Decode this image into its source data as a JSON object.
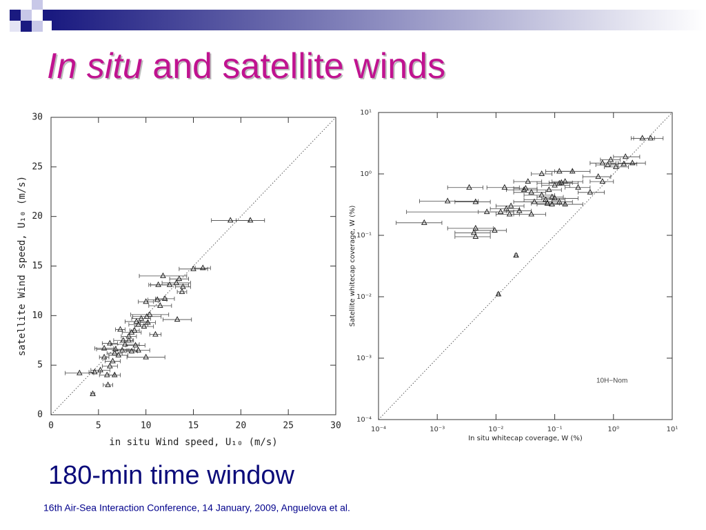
{
  "slide": {
    "title_italic": "In situ",
    "title_rest": "and satellite winds",
    "caption": "180-min time window",
    "footer": "16th Air-Sea Interaction Conference, 14 January, 2009, Anguelova et al."
  },
  "chart_data": [
    {
      "type": "scatter",
      "x_label": "in situ Wind speed, U₁₀ (m/s)",
      "y_label": "satellite Wind speed, U₁₀ (m/s)",
      "xlim": [
        0,
        30
      ],
      "ylim": [
        0,
        30
      ],
      "xticks": [
        0,
        5,
        10,
        15,
        20,
        25,
        30
      ],
      "yticks": [
        0,
        5,
        10,
        15,
        20,
        25,
        30
      ],
      "color": "#222222",
      "x": [
        18.9,
        21,
        15,
        16,
        11.8,
        13.5,
        13.2,
        12.5,
        11.3,
        13.9,
        13.8,
        12,
        11.2,
        10,
        11.5,
        10.4,
        10.1,
        9.5,
        13.3,
        9,
        9.2,
        10.2,
        9.8,
        7.3,
        8.5,
        8.8,
        11,
        8.2,
        7.6,
        8.2,
        7.8,
        8.9,
        6.2,
        5.6,
        6.8,
        7.5,
        8.5,
        6.7,
        9.2,
        7.1,
        5.6,
        10,
        6.5,
        6.2,
        5.2,
        4.6,
        3,
        5.9,
        6.7,
        6,
        4.4
      ],
      "y": [
        19.6,
        19.6,
        14.7,
        14.8,
        14,
        13.7,
        13.3,
        13.1,
        13.1,
        12.9,
        12.4,
        11.7,
        11.6,
        11.4,
        11,
        10.1,
        9.9,
        9.7,
        9.6,
        9.4,
        9.1,
        9.3,
        8.9,
        8.6,
        8.3,
        8.5,
        8.1,
        7.9,
        7.5,
        7.5,
        7.1,
        7,
        7.2,
        6.7,
        6.6,
        6.5,
        6.4,
        6.2,
        6.5,
        6,
        5.8,
        5.8,
        5.4,
        4.9,
        4.5,
        4.3,
        4.2,
        4,
        4,
        3,
        2.1
      ],
      "xerr": [
        2,
        1.5,
        1.5,
        0.8,
        2.5,
        1,
        1.5,
        2,
        1,
        0.8,
        0.5,
        1,
        1,
        0.8,
        1.2,
        2,
        1.5,
        1,
        1.5,
        1.2,
        1,
        0.8,
        1,
        0.5,
        1,
        0.5,
        0.6,
        0.8,
        1,
        0.5,
        1.5,
        1,
        0.8,
        1,
        2,
        0.7,
        0.6,
        0.8,
        1.2,
        1,
        0.5,
        2,
        0.8,
        0.8,
        1,
        0.6,
        1.5,
        0.8,
        0.6,
        0.5,
        0.2
      ]
    },
    {
      "type": "scatter",
      "x_label": "In situ whitecap coverage, W (%)",
      "y_label": "Satellite whitecap coverage, W (%)",
      "annotation": "10H−Nom",
      "xscale": "log",
      "yscale": "log",
      "xlim": [
        0.0001,
        10
      ],
      "ylim": [
        0.0001,
        10
      ],
      "xticks": [
        {
          "value": 0.0001,
          "label": "10⁻⁴"
        },
        {
          "value": 0.001,
          "label": "10⁻³"
        },
        {
          "value": 0.01,
          "label": "10⁻²"
        },
        {
          "value": 0.1,
          "label": "10⁻¹"
        },
        {
          "value": 1,
          "label": "10⁰"
        },
        {
          "value": 10,
          "label": "10¹"
        }
      ],
      "yticks": [
        {
          "value": 0.0001,
          "label": "10⁻⁴"
        },
        {
          "value": 0.001,
          "label": "10⁻³"
        },
        {
          "value": 0.01,
          "label": "10⁻²"
        },
        {
          "value": 0.1,
          "label": "10⁻¹"
        },
        {
          "value": 1,
          "label": "10⁰"
        },
        {
          "value": 10,
          "label": "10¹"
        }
      ],
      "color": "#222222",
      "x": [
        4.3,
        3.1,
        1.6,
        2.1,
        1.5,
        1.1,
        0.9,
        0.65,
        0.8,
        0.55,
        0.65,
        0.4,
        0.25,
        0.2,
        0.12,
        0.15,
        0.12,
        0.13,
        0.1,
        0.06,
        0.08,
        0.035,
        0.03,
        0.04,
        0.045,
        0.06,
        0.07,
        0.09,
        0.1,
        0.12,
        0.09,
        0.075,
        0.15,
        0.018,
        0.015,
        0.017,
        0.012,
        0.025,
        0.04,
        0.007,
        0.0045,
        0.0015,
        0.0035,
        0.014,
        0.032,
        0.0045,
        0.0042,
        0.0045,
        0.0095,
        0.0006,
        0.022,
        0.011
      ],
      "y": [
        3.8,
        3.8,
        1.9,
        1.5,
        1.45,
        1.3,
        1.7,
        1.5,
        1.4,
        0.9,
        0.75,
        0.5,
        0.6,
        1.1,
        1.1,
        0.75,
        0.7,
        0.72,
        0.65,
        1,
        0.55,
        0.75,
        0.55,
        0.5,
        0.35,
        0.45,
        0.38,
        0.42,
        0.4,
        0.35,
        0.32,
        0.33,
        0.32,
        0.3,
        0.27,
        0.22,
        0.24,
        0.25,
        0.22,
        0.24,
        0.35,
        0.36,
        0.6,
        0.6,
        0.58,
        0.13,
        0.11,
        0.095,
        0.12,
        0.16,
        0.047,
        0.011
      ],
      "x_low": [
        2.2,
        2,
        1,
        1.2,
        0.9,
        0.7,
        0.6,
        0.4,
        0.5,
        0.3,
        0.4,
        0.25,
        0.15,
        0.1,
        0.07,
        0.09,
        0.05,
        0.08,
        0.06,
        0.04,
        0.05,
        0.02,
        0.015,
        0.02,
        0.02,
        0.03,
        0.03,
        0.05,
        0.06,
        0.07,
        0.05,
        0.04,
        0.08,
        0.01,
        0.008,
        0.01,
        0.005,
        0.015,
        0.02,
        0.0003,
        0.002,
        0.0005,
        0.0015,
        0.007,
        0.02,
        0.0015,
        0.002,
        0.002,
        0.0045,
        0.0002,
        0.021,
        0.0105
      ],
      "x_high": [
        7,
        5,
        2.8,
        3.5,
        2.5,
        1.8,
        1.3,
        1.1,
        1.2,
        0.9,
        1,
        0.7,
        0.4,
        0.4,
        0.2,
        0.3,
        0.25,
        0.2,
        0.18,
        0.09,
        0.13,
        0.06,
        0.05,
        0.07,
        0.09,
        0.1,
        0.15,
        0.14,
        0.25,
        0.2,
        0.15,
        0.12,
        0.3,
        0.03,
        0.025,
        0.025,
        0.02,
        0.04,
        0.07,
        0.02,
        0.008,
        0.005,
        0.006,
        0.025,
        0.05,
        0.009,
        0.008,
        0.008,
        0.015,
        0.0012,
        0.023,
        0.0115
      ]
    }
  ]
}
